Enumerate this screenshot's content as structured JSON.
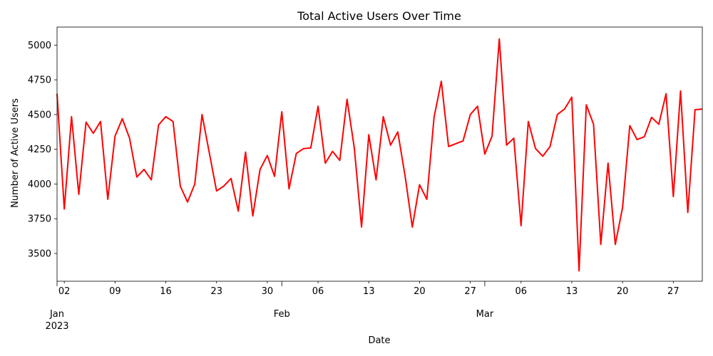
{
  "chart_data": {
    "type": "line",
    "title": "Total Active Users Over Time",
    "xlabel": "Date",
    "ylabel": "Number of Active Users",
    "x_start": "2023-01-01",
    "x_end": "2023-03-31",
    "ylim": [
      3300,
      5130
    ],
    "yticks": [
      3500,
      3750,
      4000,
      4250,
      4500,
      4750,
      5000
    ],
    "ytick_labels": [
      "3500",
      "3750",
      "4000",
      "4250",
      "4500",
      "4750",
      "5000"
    ],
    "minor_xticks": [
      {
        "date": "2023-01-02",
        "label": "02"
      },
      {
        "date": "2023-01-09",
        "label": "09"
      },
      {
        "date": "2023-01-16",
        "label": "16"
      },
      {
        "date": "2023-01-23",
        "label": "23"
      },
      {
        "date": "2023-01-30",
        "label": "30"
      },
      {
        "date": "2023-02-06",
        "label": "06"
      },
      {
        "date": "2023-02-13",
        "label": "13"
      },
      {
        "date": "2023-02-20",
        "label": "20"
      },
      {
        "date": "2023-02-27",
        "label": "27"
      },
      {
        "date": "2023-03-06",
        "label": "06"
      },
      {
        "date": "2023-03-13",
        "label": "13"
      },
      {
        "date": "2023-03-20",
        "label": "20"
      },
      {
        "date": "2023-03-27",
        "label": "27"
      }
    ],
    "major_xticks": [
      {
        "date": "2023-01-01",
        "label": "Jan",
        "sublabel": "2023"
      },
      {
        "date": "2023-02-01",
        "label": "Feb",
        "sublabel": ""
      },
      {
        "date": "2023-03-01",
        "label": "Mar",
        "sublabel": ""
      }
    ],
    "grid": false,
    "series": [
      {
        "color": "#ff0000",
        "x": [
          "2023-01-01",
          "2023-01-02",
          "2023-01-03",
          "2023-01-04",
          "2023-01-05",
          "2023-01-06",
          "2023-01-07",
          "2023-01-08",
          "2023-01-09",
          "2023-01-10",
          "2023-01-11",
          "2023-01-12",
          "2023-01-13",
          "2023-01-14",
          "2023-01-15",
          "2023-01-16",
          "2023-01-17",
          "2023-01-18",
          "2023-01-19",
          "2023-01-20",
          "2023-01-21",
          "2023-01-22",
          "2023-01-23",
          "2023-01-24",
          "2023-01-25",
          "2023-01-26",
          "2023-01-27",
          "2023-01-28",
          "2023-01-29",
          "2023-01-30",
          "2023-01-31",
          "2023-02-01",
          "2023-02-02",
          "2023-02-03",
          "2023-02-04",
          "2023-02-05",
          "2023-02-06",
          "2023-02-07",
          "2023-02-08",
          "2023-02-09",
          "2023-02-10",
          "2023-02-11",
          "2023-02-12",
          "2023-02-13",
          "2023-02-14",
          "2023-02-15",
          "2023-02-16",
          "2023-02-17",
          "2023-02-18",
          "2023-02-19",
          "2023-02-20",
          "2023-02-21",
          "2023-02-22",
          "2023-02-23",
          "2023-02-24",
          "2023-02-25",
          "2023-02-26",
          "2023-02-27",
          "2023-02-28",
          "2023-03-01",
          "2023-03-02",
          "2023-03-03",
          "2023-03-04",
          "2023-03-05",
          "2023-03-06",
          "2023-03-07",
          "2023-03-08",
          "2023-03-09",
          "2023-03-10",
          "2023-03-11",
          "2023-03-12",
          "2023-03-13",
          "2023-03-14",
          "2023-03-15",
          "2023-03-16",
          "2023-03-17",
          "2023-03-18",
          "2023-03-19",
          "2023-03-20",
          "2023-03-21",
          "2023-03-22",
          "2023-03-23",
          "2023-03-24",
          "2023-03-25",
          "2023-03-26",
          "2023-03-27",
          "2023-03-28",
          "2023-03-29",
          "2023-03-30",
          "2023-03-31"
        ],
        "values": [
          4650,
          3820,
          4485,
          3925,
          4445,
          4365,
          4450,
          3890,
          4345,
          4470,
          4330,
          4050,
          4105,
          4030,
          4425,
          4485,
          4450,
          3985,
          3870,
          4000,
          4500,
          4225,
          3950,
          3985,
          4040,
          3805,
          4230,
          3770,
          4105,
          4205,
          4055,
          4520,
          3965,
          4220,
          4255,
          4260,
          4560,
          4150,
          4235,
          4170,
          4610,
          4260,
          3690,
          4355,
          4030,
          4485,
          4280,
          4375,
          4060,
          3690,
          3995,
          3890,
          4480,
          4740,
          4270,
          4290,
          4310,
          4500,
          4560,
          4215,
          4345,
          5045,
          4280,
          4330,
          3700,
          4450,
          4255,
          4200,
          4270,
          4500,
          4540,
          4625,
          3375,
          4570,
          4430,
          3565,
          4150,
          3565,
          3830,
          4420,
          4320,
          4340,
          4480,
          4430,
          4650,
          3910,
          4670,
          3795,
          4535,
          4540
        ]
      }
    ]
  }
}
